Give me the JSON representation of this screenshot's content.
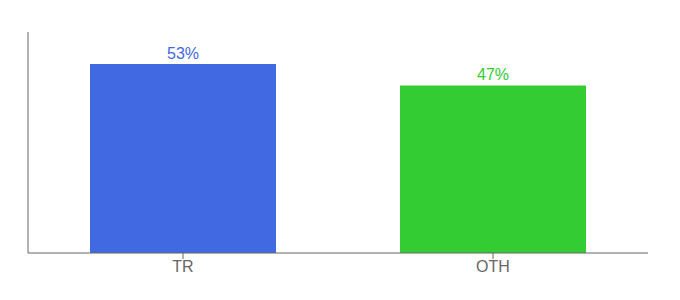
{
  "chart_data": {
    "type": "bar",
    "categories": [
      "TR",
      "OTH"
    ],
    "values": [
      53,
      47
    ],
    "value_labels": [
      "53%",
      "47%"
    ],
    "colors": [
      "#4169e1",
      "#33cc33"
    ],
    "ylim": [
      0,
      62
    ],
    "tick_labels": "x",
    "data_labels": true,
    "grid": false
  }
}
